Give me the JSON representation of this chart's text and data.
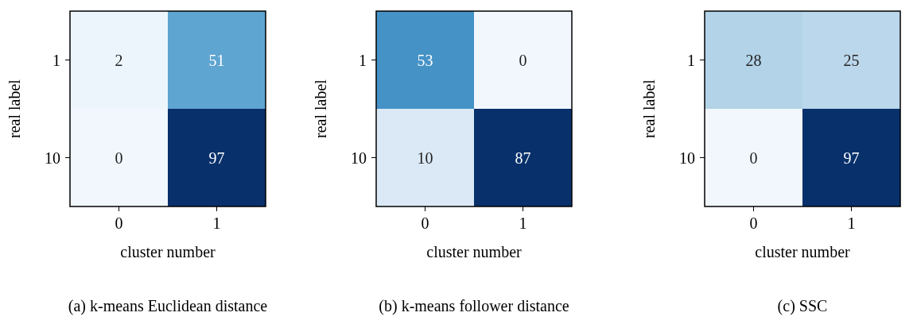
{
  "chart_data": [
    {
      "type": "heatmap",
      "title": "(a) k-means Euclidean distance",
      "xlabel": "cluster number",
      "ylabel": "real label",
      "categories": [
        "0",
        "1"
      ],
      "y_categories": [
        "1",
        "10"
      ],
      "cells": [
        [
          2,
          51
        ],
        [
          0,
          97
        ]
      ],
      "data_labels": true
    },
    {
      "type": "heatmap",
      "title": "(b) k-means follower distance",
      "xlabel": "cluster number",
      "ylabel": "real label",
      "categories": [
        "0",
        "1"
      ],
      "y_categories": [
        "1",
        "10"
      ],
      "cells": [
        [
          53,
          0
        ],
        [
          10,
          87
        ]
      ],
      "data_labels": true
    },
    {
      "type": "heatmap",
      "title": "(c) SSC",
      "xlabel": "cluster number",
      "ylabel": "real label",
      "categories": [
        "0",
        "1"
      ],
      "y_categories": [
        "1",
        "10"
      ],
      "cells": [
        [
          28,
          25
        ],
        [
          0,
          97
        ]
      ],
      "data_labels": true
    }
  ]
}
